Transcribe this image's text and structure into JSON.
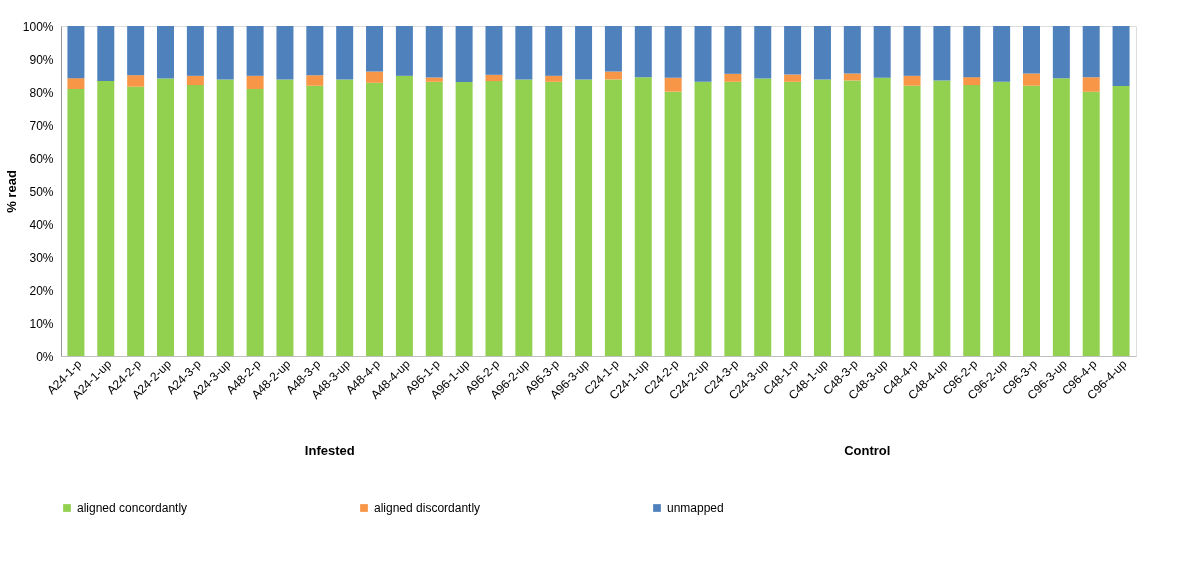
{
  "chart_data": {
    "type": "bar",
    "stacked": true,
    "ylabel": "% read",
    "categories": [
      "A24-1-p",
      "A24-1-up",
      "A24-2-p",
      "A24-2-up",
      "A24-3-p",
      "A24-3-up",
      "A48-2-p",
      "A48-2-up",
      "A48-3-p",
      "A48-3-up",
      "A48-4-p",
      "A48-4-up",
      "A96-1-p",
      "A96-1-up",
      "A96-2-p",
      "A96-2-up",
      "A96-3-p",
      "A96-3-up",
      "C24-1-p",
      "C24-1-up",
      "C24-2-p",
      "C24-2-up",
      "C24-3-p",
      "C24-3-up",
      "C48-1-p",
      "C48-1-up",
      "C48-3-p",
      "C48-3-up",
      "C48-4-p",
      "C48-4-up",
      "C96-2-p",
      "C96-2-up",
      "C96-3-p",
      "C96-3-up",
      "C96-4-p",
      "C96-4-up"
    ],
    "series": [
      {
        "name": "aligned concordantly",
        "color": "#92d050",
        "values": [
          80.9,
          83.3,
          81.6,
          84.1,
          82.1,
          83.8,
          80.9,
          83.8,
          81.9,
          83.8,
          82.8,
          84.9,
          83.1,
          83.0,
          83.3,
          83.8,
          83.1,
          83.8,
          83.8,
          84.5,
          80.1,
          83.1,
          83.1,
          84.1,
          83.1,
          83.8,
          83.5,
          84.3,
          81.9,
          83.5,
          82.1,
          83.1,
          81.9,
          84.2,
          80.1,
          81.8
        ]
      },
      {
        "name": "aligned discordantly",
        "color": "#f79646",
        "values": [
          3.3,
          0,
          3.5,
          0,
          2.8,
          0,
          4.0,
          0,
          3.2,
          0,
          3.4,
          0,
          1.3,
          0,
          1.9,
          0,
          1.8,
          0,
          2.4,
          0,
          4.2,
          0,
          2.4,
          0,
          2.2,
          0,
          2.1,
          0,
          3.0,
          0,
          2.4,
          0,
          3.7,
          0,
          4.4,
          0
        ]
      },
      {
        "name": "unmapped",
        "color": "#4f81bd",
        "values": [
          15.8,
          16.7,
          14.9,
          15.9,
          15.1,
          16.2,
          15.1,
          16.2,
          14.9,
          16.2,
          13.8,
          15.1,
          15.6,
          17.0,
          14.8,
          16.2,
          15.1,
          16.2,
          13.8,
          15.5,
          15.7,
          16.9,
          14.5,
          15.9,
          14.7,
          16.2,
          14.4,
          15.7,
          15.1,
          16.5,
          15.5,
          16.9,
          14.4,
          15.8,
          15.5,
          18.2
        ]
      }
    ],
    "ylim": [
      0,
      100
    ],
    "yticks": [
      {
        "value": 0,
        "label": "0%"
      },
      {
        "value": 10,
        "label": "10%"
      },
      {
        "value": 20,
        "label": "20%"
      },
      {
        "value": 30,
        "label": "30%"
      },
      {
        "value": 40,
        "label": "40%"
      },
      {
        "value": 50,
        "label": "50%"
      },
      {
        "value": 60,
        "label": "60%"
      },
      {
        "value": 70,
        "label": "70%"
      },
      {
        "value": 80,
        "label": "80%"
      },
      {
        "value": 90,
        "label": "90%"
      },
      {
        "value": 100,
        "label": "100%"
      }
    ],
    "grid": false,
    "legend": "bottom",
    "annotations": [
      "Infested",
      "Control"
    ]
  }
}
